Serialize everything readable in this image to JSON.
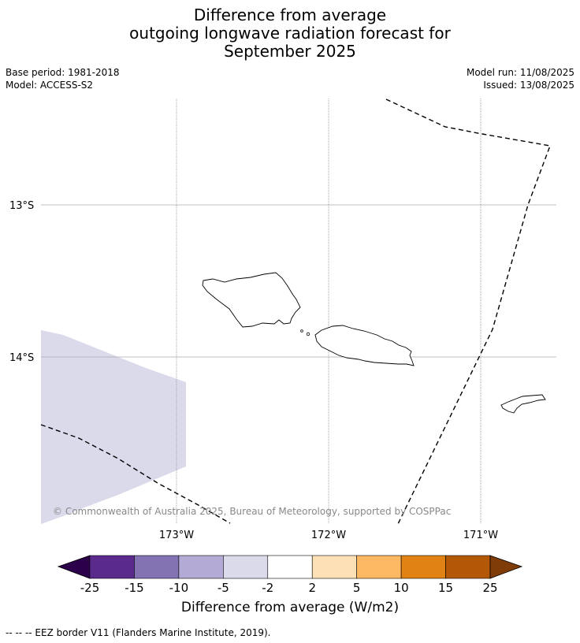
{
  "title": [
    "Difference from average",
    "outgoing longwave radiation forecast for",
    "September 2025"
  ],
  "base_period": "Base period: 1981-2018",
  "model": "Model: ACCESS-S2",
  "model_run": "Model run: 11/08/2025",
  "issued": "Issued: 13/08/2025",
  "lat_labels": [
    "13°S",
    "14°S"
  ],
  "lon_labels": [
    "173°W",
    "172°W",
    "171°W"
  ],
  "copyright": "© Commonwealth of Australia 2025, Bureau of Meteorology, supported by COSPPac",
  "colorbar": {
    "ticks": [
      "-25",
      "-15",
      "-10",
      "-5",
      "-2",
      "2",
      "5",
      "10",
      "15",
      "25"
    ],
    "colors": [
      "#5b2a8d",
      "#8473b3",
      "#b3abd5",
      "#dadaeb",
      "#ffffff",
      "#fde0b6",
      "#fdb863",
      "#e08214",
      "#b35806"
    ],
    "under_color": "#2d004b",
    "over_color": "#7f3b08",
    "label": "Difference from average (W/m2)"
  },
  "shaded_region_color": "#dadaeb",
  "footer": "--  --  -- EEZ border V11 (Flanders Marine Institute, 2019)."
}
